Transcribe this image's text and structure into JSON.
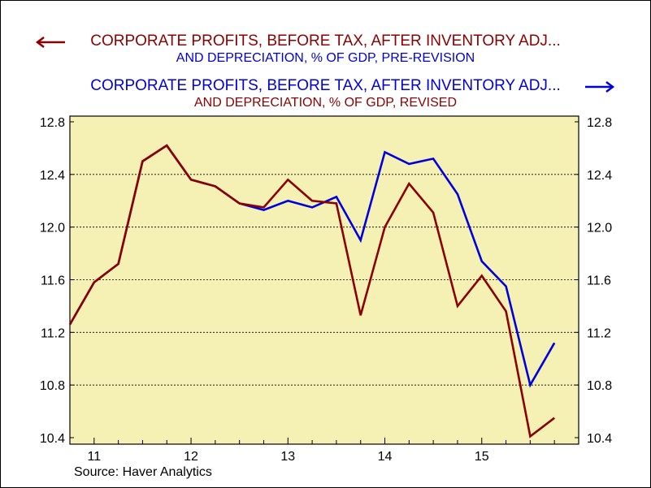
{
  "chart_data": {
    "type": "line",
    "legend": [
      {
        "line1": "CORPORATE PROFITS, BEFORE TAX, AFTER INVENTORY ADJ...",
        "line2": "AND DEPRECIATION, % OF GDP, PRE-REVISION",
        "line1_color": "#8b0000",
        "line2_color": "#0000dd",
        "arrow": "left",
        "arrow_color": "#8b0000"
      },
      {
        "line1": "CORPORATE PROFITS, BEFORE TAX, AFTER INVENTORY ADJ...",
        "line2": "AND DEPRECIATION, % OF GDP, REVISED",
        "line1_color": "#0000dd",
        "line2_color": "#8b0000",
        "arrow": "right",
        "arrow_color": "#0000dd"
      }
    ],
    "x": [
      2010.75,
      2011.0,
      2011.25,
      2011.5,
      2011.75,
      2012.0,
      2012.25,
      2012.5,
      2012.75,
      2013.0,
      2013.25,
      2013.5,
      2013.75,
      2014.0,
      2014.25,
      2014.5,
      2014.75,
      2015.0,
      2015.25,
      2015.5,
      2015.75
    ],
    "x_ticks": [
      {
        "label": "11",
        "value": 2011.0
      },
      {
        "label": "12",
        "value": 2012.0
      },
      {
        "label": "13",
        "value": 2013.0
      },
      {
        "label": "14",
        "value": 2014.0
      },
      {
        "label": "15",
        "value": 2015.0
      }
    ],
    "xlim": [
      2010.75,
      2016.0
    ],
    "ylim": [
      10.35,
      12.85
    ],
    "y_ticks": [
      "12.8",
      "12.4",
      "12.0",
      "11.6",
      "11.2",
      "10.8",
      "10.4"
    ],
    "series": [
      {
        "color": "#0000dd",
        "axis": "right",
        "values": [
          11.26,
          11.58,
          11.72,
          12.5,
          12.62,
          12.36,
          12.31,
          12.18,
          12.13,
          12.2,
          12.15,
          12.23,
          11.9,
          12.57,
          12.48,
          12.52,
          12.25,
          11.74,
          11.55,
          10.8,
          11.12
        ]
      },
      {
        "color": "#8b0000",
        "axis": "left",
        "values": [
          11.26,
          11.58,
          11.72,
          12.5,
          12.62,
          12.36,
          12.31,
          12.18,
          12.15,
          12.36,
          12.2,
          12.18,
          11.33,
          12.0,
          12.33,
          12.11,
          11.4,
          11.63,
          11.36,
          10.41,
          10.55
        ]
      }
    ],
    "grid": "horizontal-dashed",
    "plot_background": "#f5f0b3",
    "source": "Source: Haver Analytics"
  }
}
